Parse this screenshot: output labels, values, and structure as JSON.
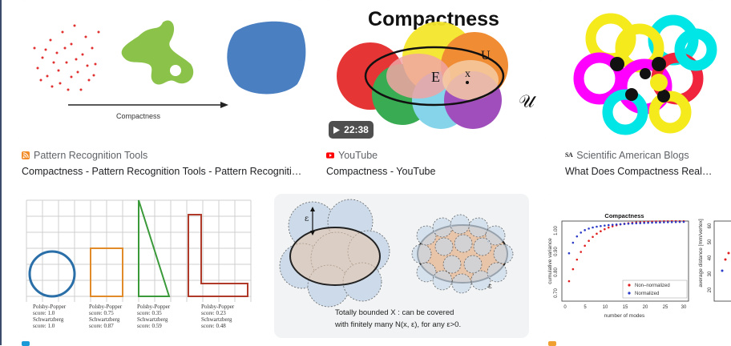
{
  "results": [
    {
      "source": "Pattern Recognition Tools",
      "title": "Compactness - Pattern Recognition Tools - Pattern Recognitio...",
      "source_icon": "rss-feed-icon",
      "image_label": "Compactness"
    },
    {
      "source": "YouTube",
      "title": "Compactness - YouTube",
      "source_icon": "youtube-icon",
      "image_title": "Compactness",
      "set_e": "E",
      "set_u": "U",
      "point_x": "x",
      "universe": "𝒰",
      "duration": "22:38"
    },
    {
      "source": "Scientific American Blogs",
      "title": "What Does Compactness Really...",
      "source_icon": "sa-icon",
      "source_icon_text": "SA"
    },
    {
      "scores": [
        {
          "line1": "Polsby-Popper",
          "line2": "score: 1.0",
          "line3": "Schwartzberg",
          "line4": "score: 1.0"
        },
        {
          "line1": "Polsby-Popper",
          "line2": "score: 0.75",
          "line3": "Schwartzberg",
          "line4": "score: 0.87"
        },
        {
          "line1": "Polsby-Popper",
          "line2": "score: 0.35",
          "line3": "Schwartzberg",
          "line4": "score: 0.59"
        },
        {
          "line1": "Polsby-Popper",
          "line2": "score: 0.23",
          "line3": "Schwartzberg",
          "line4": "score: 0.48"
        }
      ]
    },
    {
      "epsilon": "ε",
      "caption_line1": "Totally bounded X : can be covered",
      "caption_line2": "with finitely many N(x, ε), for any ε>0."
    },
    {
      "chart_title": "Compactness",
      "ylabel": "cumulative variance",
      "xlabel": "number of modes",
      "yticks": [
        "0.70",
        "0.80",
        "0.90",
        "1.00"
      ],
      "xticks": [
        "0",
        "5",
        "10",
        "15",
        "20",
        "25",
        "30"
      ],
      "legend": [
        "Non–normalized",
        "Normalized"
      ],
      "ylabel2": "average distance [mm/vertex]",
      "yticks2": [
        "20",
        "30",
        "40",
        "50",
        "60"
      ]
    }
  ],
  "colors": {
    "accent_blue": "#4a7fc1",
    "chart_red": "#e02020",
    "chart_blue": "#2c3cc8"
  }
}
